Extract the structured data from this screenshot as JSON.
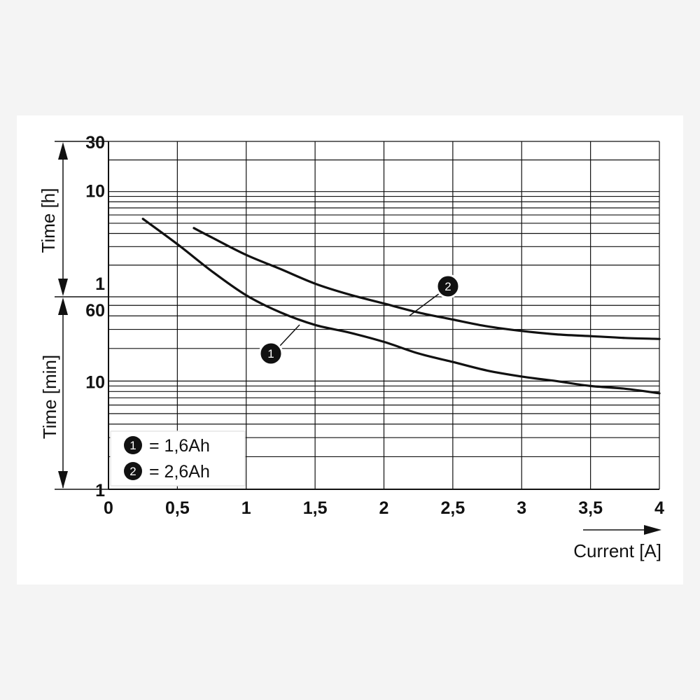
{
  "chart_data": {
    "type": "line",
    "x": [
      0.25,
      0.5,
      0.75,
      1.0,
      1.25,
      1.5,
      1.75,
      2.0,
      2.25,
      2.5,
      2.75,
      3.0,
      3.25,
      3.5,
      3.75,
      4.0
    ],
    "xlabel": "Current [A]",
    "x_ticks": [
      "0",
      "0,5",
      "1",
      "1,5",
      "2",
      "2,5",
      "3",
      "3,5",
      "4"
    ],
    "xlim": [
      0,
      4
    ],
    "y_axes": [
      {
        "label": "Time [h]",
        "ticks": [
          "30",
          "10",
          "1"
        ],
        "range_hours": [
          1,
          30
        ]
      },
      {
        "label": "Time [min]",
        "ticks": [
          "60",
          "10",
          "1"
        ],
        "range_minutes": [
          1,
          60
        ]
      }
    ],
    "y_scale": "log",
    "y_units": "minutes",
    "ylim": [
      1,
      1800
    ],
    "series": [
      {
        "marker": "1",
        "x": [
          0.25,
          0.5,
          0.75,
          1.0,
          1.25,
          1.5,
          1.75,
          2.0,
          2.25,
          2.5,
          2.75,
          3.0,
          3.25,
          3.5,
          3.75,
          4.0
        ],
        "values": [
          330,
          190,
          105,
          62,
          43,
          33,
          28,
          23,
          18,
          15,
          12.5,
          11,
          10,
          9,
          8.5,
          7.7
        ]
      },
      {
        "marker": "2",
        "x": [
          0.62,
          0.75,
          1.0,
          1.25,
          1.5,
          1.75,
          2.0,
          2.25,
          2.5,
          2.75,
          3.0,
          3.25,
          3.5,
          3.75,
          4.0
        ],
        "values": [
          270,
          220,
          150,
          110,
          80,
          63,
          52,
          43,
          37,
          32,
          29,
          27,
          26,
          25,
          24.5
        ]
      }
    ],
    "legend": [
      {
        "marker": "1",
        "text": "= 1,6Ah"
      },
      {
        "marker": "2",
        "text": "= 2,6Ah"
      }
    ],
    "grid": true,
    "legend_position": "bottom-left"
  }
}
